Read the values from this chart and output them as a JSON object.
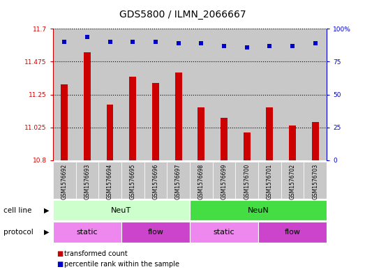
{
  "title": "GDS5800 / ILMN_2066667",
  "samples": [
    "GSM1576692",
    "GSM1576693",
    "GSM1576694",
    "GSM1576695",
    "GSM1576696",
    "GSM1576697",
    "GSM1576698",
    "GSM1576699",
    "GSM1576700",
    "GSM1576701",
    "GSM1576702",
    "GSM1576703"
  ],
  "bar_values": [
    11.32,
    11.54,
    11.18,
    11.37,
    11.33,
    11.4,
    11.16,
    11.09,
    10.99,
    11.16,
    11.04,
    11.06
  ],
  "percentile_values": [
    90,
    94,
    90,
    90,
    90,
    89,
    89,
    87,
    86,
    87,
    87,
    89
  ],
  "bar_color": "#cc0000",
  "dot_color": "#0000cc",
  "ymin": 10.8,
  "ymax": 11.7,
  "yticks": [
    10.8,
    11.025,
    11.25,
    11.475,
    11.7
  ],
  "ytick_labels": [
    "10.8",
    "11.025",
    "11.25",
    "11.475",
    "11.7"
  ],
  "y2min": 0,
  "y2max": 100,
  "y2ticks": [
    0,
    25,
    50,
    75,
    100
  ],
  "y2tick_labels": [
    "0",
    "25",
    "50",
    "75",
    "100%"
  ],
  "color_neut": "#ccffcc",
  "color_neun": "#44dd44",
  "color_static": "#ee88ee",
  "color_flow": "#cc44cc",
  "legend_items": [
    {
      "color": "#cc0000",
      "label": "transformed count"
    },
    {
      "color": "#0000cc",
      "label": "percentile rank within the sample"
    }
  ],
  "bg_color": "#ffffff",
  "sample_bg_color": "#c8c8c8"
}
